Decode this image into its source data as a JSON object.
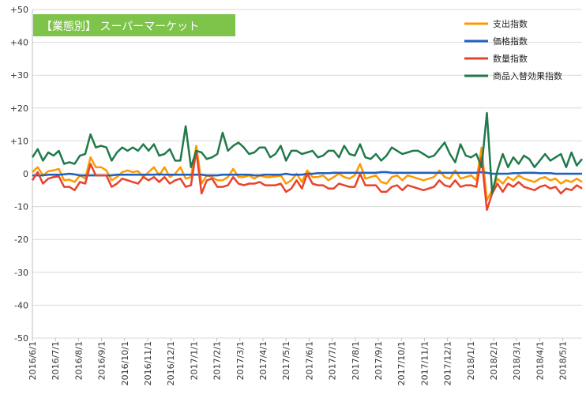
{
  "chart_data": {
    "type": "line",
    "title": "【業態別】 スーパーマーケット",
    "title_bg_color": "#7ec34a",
    "ylim": [
      -50,
      50
    ],
    "y_ticks": [
      "+50",
      "+40",
      "+30",
      "+20",
      "+10",
      "0",
      "-10",
      "-20",
      "-30",
      "-40",
      "-50"
    ],
    "y_tick_values": [
      50,
      40,
      30,
      20,
      10,
      0,
      -10,
      -20,
      -30,
      -40,
      -50
    ],
    "grid": true,
    "legend_position": "top-right",
    "x_tick_labels": [
      "2016/6/1",
      "2016/7/1",
      "2016/8/1",
      "2016/9/1",
      "2016/10/1",
      "2016/11/1",
      "2016/12/1",
      "2017/1/1",
      "2017/2/1",
      "2017/3/1",
      "2017/4/1",
      "2017/5/1",
      "2017/6/1",
      "2017/7/1",
      "2017/8/1",
      "2017/9/1",
      "2017/10/1",
      "2017/11/1",
      "2017/12/1",
      "2018/1/1",
      "2018/2/1",
      "2018/3/1",
      "2018/4/1",
      "2018/5/1"
    ],
    "num_points": 105,
    "series": [
      {
        "name": "支出指数",
        "color": "#ff9900",
        "values": [
          0.5,
          2,
          -0.5,
          0.8,
          1,
          1.5,
          -2,
          -1.8,
          -2.5,
          -0.5,
          -1.5,
          5,
          2,
          2,
          1,
          -2,
          -1,
          0.5,
          1,
          0.5,
          0.8,
          -1,
          0.5,
          2,
          -0.5,
          2,
          -1,
          0,
          2,
          -1.5,
          -1,
          8.5,
          -3,
          -0.5,
          -1,
          -2,
          -2,
          -1,
          1.5,
          -1,
          -1,
          -0.5,
          -1.5,
          -0.5,
          -1,
          -1,
          -0.8,
          -0.5,
          -3,
          -2,
          0,
          -2.5,
          1,
          -1,
          -1,
          -0.5,
          -2,
          -1,
          0,
          -1,
          -1.5,
          -0.5,
          3,
          -1.5,
          -1,
          -0.5,
          -2.5,
          -3,
          -1,
          -0.5,
          -2,
          -0.5,
          -1,
          -1.5,
          -2,
          -1.5,
          -1,
          1,
          -1,
          -1.5,
          1,
          -1.5,
          -1,
          -0.5,
          -2,
          8,
          -8,
          -5,
          -1.5,
          -3,
          -1,
          -2,
          -0.5,
          -1.5,
          -2,
          -2.5,
          -1.5,
          -1,
          -2,
          -1.5,
          -3,
          -2,
          -2.5,
          -1.5,
          -2.5
        ]
      },
      {
        "name": "価格指数",
        "color": "#1f5fbf",
        "values": [
          -0.5,
          -0.5,
          -0.5,
          -0.3,
          -0.3,
          -0.3,
          -0.2,
          0,
          -0.2,
          -0.5,
          -0.5,
          -0.5,
          -0.5,
          -0.5,
          -0.5,
          -0.5,
          -0.3,
          -0.3,
          -0.3,
          -0.3,
          -0.3,
          -0.3,
          -0.3,
          -0.3,
          -0.2,
          -0.3,
          -0.3,
          -0.3,
          -0.3,
          -0.3,
          -0.3,
          -0.3,
          -0.3,
          -0.5,
          -0.5,
          -0.5,
          -0.3,
          -0.3,
          -0.3,
          -0.3,
          -0.3,
          -0.3,
          -0.5,
          -0.5,
          -0.3,
          -0.3,
          -0.3,
          -0.3,
          0,
          -0.3,
          -0.3,
          -0.3,
          0,
          0,
          0.2,
          0.2,
          0.2,
          0.3,
          0.3,
          0.3,
          0.3,
          0.3,
          0.3,
          0.3,
          0.3,
          0.3,
          0.5,
          0.5,
          0.3,
          0.3,
          0.3,
          0.3,
          0.3,
          0.3,
          0.3,
          0.3,
          0.3,
          0.3,
          0.3,
          0.3,
          0.3,
          0.3,
          0.3,
          0.3,
          0.3,
          0.5,
          0.3,
          0,
          0,
          0,
          0,
          0.2,
          0.2,
          0.3,
          0.3,
          0.3,
          0.2,
          0.2,
          0.2,
          0,
          0,
          0,
          0,
          0,
          0
        ]
      },
      {
        "name": "数量指数",
        "color": "#e8432c",
        "values": [
          -2,
          0.5,
          -3,
          -1.5,
          -1,
          -0.8,
          -4,
          -4,
          -5,
          -2.5,
          -3,
          3,
          -0.5,
          -0.5,
          -0.5,
          -4,
          -3,
          -1.5,
          -2,
          -2.5,
          -3,
          -1,
          -2,
          -1,
          -2.5,
          -1,
          -3,
          -2,
          -1.5,
          -4,
          -3.5,
          7,
          -6,
          -2,
          -1.5,
          -4,
          -4,
          -3.5,
          -1,
          -3,
          -3.5,
          -3,
          -3,
          -2.5,
          -3.5,
          -3.5,
          -3.5,
          -3,
          -5.5,
          -4.5,
          -2,
          -4.5,
          0,
          -3,
          -3.5,
          -3.5,
          -4.5,
          -4.5,
          -3,
          -3.5,
          -4,
          -4,
          0,
          -3.5,
          -3.5,
          -3.5,
          -5.5,
          -5.5,
          -4,
          -3.5,
          -5,
          -3.5,
          -4,
          -4.5,
          -5,
          -4.5,
          -4,
          -2,
          -3.5,
          -4,
          -2,
          -4,
          -3.5,
          -3.5,
          -4,
          5,
          -11,
          -6,
          -3,
          -5.5,
          -3,
          -4,
          -2.5,
          -4,
          -4.5,
          -5,
          -4,
          -3.5,
          -4.5,
          -4,
          -6,
          -4.5,
          -5,
          -3.5,
          -4.5
        ]
      },
      {
        "name": "商品入替効果指数",
        "color": "#217a4a",
        "values": [
          5,
          7.5,
          4,
          6.5,
          5.5,
          7,
          3,
          3.5,
          3,
          5.5,
          6,
          12,
          8,
          8.5,
          8,
          4,
          6.5,
          8,
          7,
          8,
          7,
          9,
          7,
          9,
          5.5,
          6,
          7.5,
          4,
          4,
          14.5,
          2,
          7,
          6.5,
          4.5,
          5,
          6,
          12.5,
          7,
          8.5,
          9.5,
          8,
          6,
          6.5,
          8,
          8,
          5,
          6,
          8.5,
          4,
          7,
          7,
          6,
          6.5,
          7,
          5,
          5.5,
          7,
          7,
          5,
          8.5,
          6,
          5.5,
          9,
          5,
          4.5,
          6,
          4,
          5.5,
          8,
          7,
          6,
          6.5,
          7,
          7,
          6,
          5,
          5.5,
          7.5,
          9.5,
          6,
          3.5,
          9,
          5.5,
          5,
          6,
          2,
          18.5,
          -6,
          1,
          6,
          2,
          5,
          3,
          5.5,
          4.5,
          2,
          4,
          6,
          4,
          5,
          6,
          2,
          6.5,
          2.5,
          4.5
        ]
      }
    ]
  }
}
